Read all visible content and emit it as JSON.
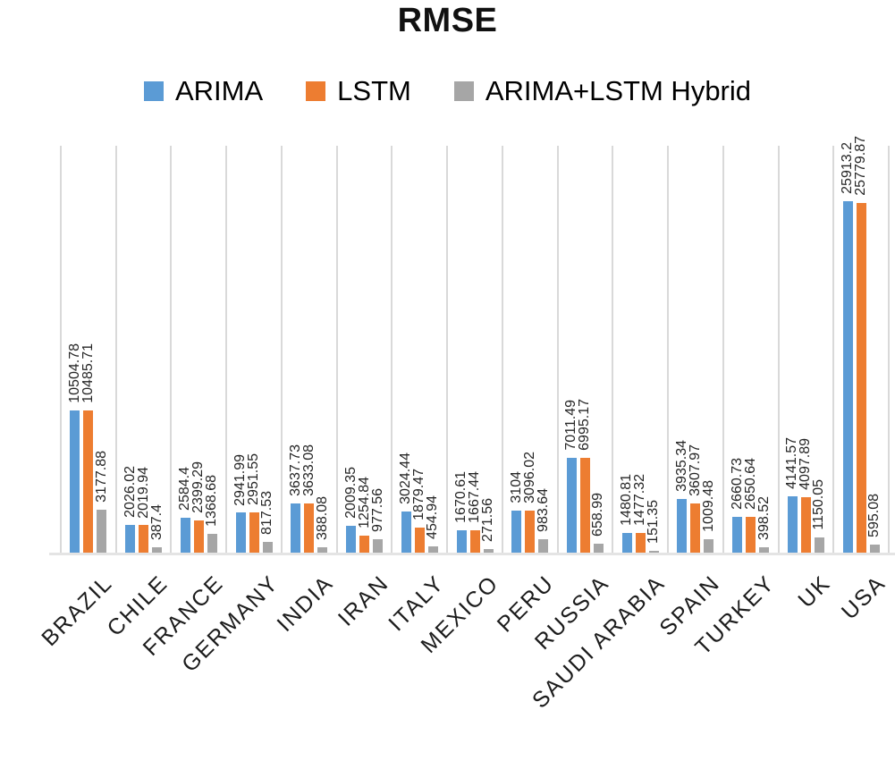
{
  "title": "RMSE",
  "legend": [
    {
      "label": "ARIMA",
      "color": "#5B9BD5"
    },
    {
      "label": "LSTM",
      "color": "#ED7D31"
    },
    {
      "label": "ARIMA+LSTM Hybrid",
      "color": "#A6A6A6"
    }
  ],
  "chart_data": {
    "type": "bar",
    "title": "RMSE",
    "xlabel": "",
    "ylabel": "",
    "ylim": [
      0,
      30000
    ],
    "grid": "vertical-category-separators",
    "legend_position": "top",
    "data_labels": "rotated-90-above-bars",
    "x_tick_rotation": 45,
    "categories": [
      "BRAZIL",
      "CHILE",
      "FRANCE",
      "GERMANY",
      "INDIA",
      "IRAN",
      "ITALY",
      "MEXICO",
      "PERU",
      "RUSSIA",
      "SAUDI ARABIA",
      "SPAIN",
      "TURKEY",
      "UK",
      "USA"
    ],
    "series": [
      {
        "name": "ARIMA",
        "color": "#5B9BD5",
        "values": [
          10504.78,
          2026.02,
          2584.4,
          2941.99,
          3637.73,
          2009.35,
          3024.44,
          1670.61,
          3104,
          7011.49,
          1480.81,
          3935.34,
          2660.73,
          4141.57,
          25913.2
        ],
        "labels": [
          "10504.78",
          "2026.02",
          "2584.4",
          "2941.99",
          "3637.73",
          "2009.35",
          "3024.44",
          "1670.61",
          "3104",
          "7011.49",
          "1480.81",
          "3935.34",
          "2660.73",
          "4141.57",
          "25913.2"
        ]
      },
      {
        "name": "LSTM",
        "color": "#ED7D31",
        "values": [
          10485.71,
          2019.94,
          2399.29,
          2951.55,
          3633.08,
          1254.84,
          1879.47,
          1667.44,
          3096.02,
          6995.17,
          1477.32,
          3607.97,
          2650.64,
          4097.89,
          25779.87
        ],
        "labels": [
          "10485.71",
          "2019.94",
          "2399.29",
          "2951.55",
          "3633.08",
          "1254.84",
          "1879.47",
          "1667.44",
          "3096.02",
          "6995.17",
          "1477.32",
          "3607.97",
          "2650.64",
          "4097.89",
          "25779.87"
        ]
      },
      {
        "name": "ARIMA+LSTM Hybrid",
        "color": "#A6A6A6",
        "values": [
          3177.88,
          387.4,
          1368.68,
          817.53,
          388.08,
          977.56,
          454.94,
          271.56,
          983.64,
          658.99,
          151.35,
          1009.48,
          398.52,
          1150.05,
          595.08
        ],
        "labels": [
          "3177.88",
          "387.4",
          "1368.68",
          "817.53",
          "388.08",
          "977.56",
          "454.94",
          "271.56",
          "983.64",
          "658.99",
          "151.35",
          "1009.48",
          "398.52",
          "1150.05",
          "595.08"
        ]
      }
    ]
  }
}
